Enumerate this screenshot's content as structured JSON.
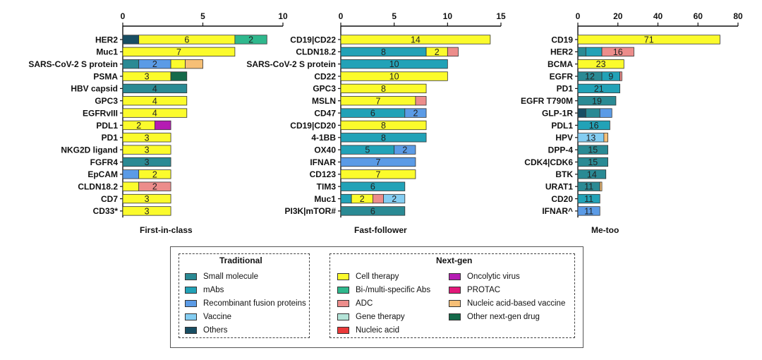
{
  "colors": {
    "small_molecule": "#2a8a94",
    "mabs": "#22a2b7",
    "recombinant": "#5b9be6",
    "vaccine": "#84cdf2",
    "others": "#184e63",
    "cell_therapy": "#fbfb2c",
    "bispecific": "#2fb88d",
    "adc": "#ec8d8b",
    "gene_therapy": "#b4e4d8",
    "nucleic_acid": "#ea3a3a",
    "oncolytic_virus": "#b51cb3",
    "protac": "#e2197a",
    "nucleic_vaccine": "#f6bf76",
    "other_nextgen": "#146a4a"
  },
  "chart_data": [
    {
      "type": "bar",
      "orientation": "horizontal",
      "stacked": true,
      "title": "First-in-class",
      "xlim": [
        0,
        10
      ],
      "xticks": [
        "0",
        "5",
        "10"
      ],
      "categories": [
        "HER2",
        "Muc1",
        "SARS-CoV-2 S protein",
        "PSMA",
        "HBV capsid",
        "GPC3",
        "EGFRvIII",
        "PDL1",
        "PD1",
        "NKG2D ligand",
        "FGFR4",
        "EpCAM",
        "CLDN18.2",
        "CD7",
        "CD33*"
      ],
      "bars": [
        [
          {
            "k": "others",
            "v": 1
          },
          {
            "k": "cell_therapy",
            "v": 6,
            "label": "6"
          },
          {
            "k": "bispecific",
            "v": 2,
            "label": "2"
          }
        ],
        [
          {
            "k": "cell_therapy",
            "v": 7,
            "label": "7"
          }
        ],
        [
          {
            "k": "small_molecule",
            "v": 1
          },
          {
            "k": "recombinant",
            "v": 2,
            "label": "2"
          },
          {
            "k": "cell_therapy",
            "v": 0.9
          },
          {
            "k": "nucleic_vaccine",
            "v": 1.1
          }
        ],
        [
          {
            "k": "cell_therapy",
            "v": 3,
            "label": "3"
          },
          {
            "k": "other_nextgen",
            "v": 1
          }
        ],
        [
          {
            "k": "small_molecule",
            "v": 4,
            "label": "4"
          }
        ],
        [
          {
            "k": "cell_therapy",
            "v": 4,
            "label": "4"
          }
        ],
        [
          {
            "k": "cell_therapy",
            "v": 4,
            "label": "4"
          }
        ],
        [
          {
            "k": "cell_therapy",
            "v": 2,
            "label": "2"
          },
          {
            "k": "oncolytic_virus",
            "v": 1
          }
        ],
        [
          {
            "k": "cell_therapy",
            "v": 3,
            "label": "3"
          }
        ],
        [
          {
            "k": "cell_therapy",
            "v": 3,
            "label": "3"
          }
        ],
        [
          {
            "k": "small_molecule",
            "v": 3,
            "label": "3"
          }
        ],
        [
          {
            "k": "recombinant",
            "v": 1
          },
          {
            "k": "cell_therapy",
            "v": 2,
            "label": "2"
          }
        ],
        [
          {
            "k": "cell_therapy",
            "v": 1
          },
          {
            "k": "adc",
            "v": 2,
            "label": "2"
          }
        ],
        [
          {
            "k": "cell_therapy",
            "v": 3,
            "label": "3"
          }
        ],
        [
          {
            "k": "cell_therapy",
            "v": 3,
            "label": "3"
          }
        ]
      ]
    },
    {
      "type": "bar",
      "orientation": "horizontal",
      "stacked": true,
      "title": "Fast-follower",
      "xlim": [
        0,
        15
      ],
      "xticks": [
        "0",
        "5",
        "10",
        "15"
      ],
      "categories": [
        "CD19|CD22",
        "CLDN18.2",
        "SARS-CoV-2 S protein",
        "CD22",
        "GPC3",
        "MSLN",
        "CD47",
        "CD19|CD20",
        "4-1BB",
        "OX40",
        "IFNAR",
        "CD123",
        "TIM3",
        "Muc1",
        "PI3K|mTOR#"
      ],
      "bars": [
        [
          {
            "k": "cell_therapy",
            "v": 14,
            "label": "14"
          }
        ],
        [
          {
            "k": "mabs",
            "v": 8,
            "label": "8"
          },
          {
            "k": "cell_therapy",
            "v": 2,
            "label": "2"
          },
          {
            "k": "adc",
            "v": 1
          }
        ],
        [
          {
            "k": "mabs",
            "v": 10,
            "label": "10"
          }
        ],
        [
          {
            "k": "cell_therapy",
            "v": 10,
            "label": "10"
          }
        ],
        [
          {
            "k": "cell_therapy",
            "v": 8,
            "label": "8"
          }
        ],
        [
          {
            "k": "cell_therapy",
            "v": 7,
            "label": "7"
          },
          {
            "k": "adc",
            "v": 1
          }
        ],
        [
          {
            "k": "mabs",
            "v": 6,
            "label": "6"
          },
          {
            "k": "recombinant",
            "v": 2,
            "label": "2"
          }
        ],
        [
          {
            "k": "cell_therapy",
            "v": 8,
            "label": "8"
          }
        ],
        [
          {
            "k": "mabs",
            "v": 8,
            "label": "8"
          }
        ],
        [
          {
            "k": "mabs",
            "v": 5,
            "label": "5"
          },
          {
            "k": "recombinant",
            "v": 2,
            "label": "2"
          }
        ],
        [
          {
            "k": "recombinant",
            "v": 7,
            "label": "7"
          }
        ],
        [
          {
            "k": "cell_therapy",
            "v": 7,
            "label": "7"
          }
        ],
        [
          {
            "k": "mabs",
            "v": 6,
            "label": "6"
          }
        ],
        [
          {
            "k": "mabs",
            "v": 1
          },
          {
            "k": "cell_therapy",
            "v": 2,
            "label": "2"
          },
          {
            "k": "adc",
            "v": 1
          },
          {
            "k": "vaccine",
            "v": 2,
            "label": "2"
          }
        ],
        [
          {
            "k": "small_molecule",
            "v": 6,
            "label": "6"
          }
        ]
      ]
    },
    {
      "type": "bar",
      "orientation": "horizontal",
      "stacked": true,
      "title": "Me-too",
      "xlim": [
        0,
        80
      ],
      "xticks": [
        "0",
        "20",
        "40",
        "60",
        "80"
      ],
      "categories": [
        "CD19",
        "HER2",
        "BCMA",
        "EGFR",
        "PD1",
        "EGFR T790M",
        "GLP-1R",
        "PDL1",
        "HPV",
        "DPP-4",
        "CDK4|CDK6",
        "BTK",
        "URAT1",
        "CD20",
        "IFNAR^"
      ],
      "bars": [
        [
          {
            "k": "cell_therapy",
            "v": 71,
            "label": "71"
          }
        ],
        [
          {
            "k": "small_molecule",
            "v": 4
          },
          {
            "k": "mabs",
            "v": 8
          },
          {
            "k": "adc",
            "v": 16,
            "label": "16"
          }
        ],
        [
          {
            "k": "cell_therapy",
            "v": 23,
            "label": "23"
          }
        ],
        [
          {
            "k": "small_molecule",
            "v": 12,
            "label": "12"
          },
          {
            "k": "mabs",
            "v": 9,
            "label": "9"
          },
          {
            "k": "adc",
            "v": 1
          }
        ],
        [
          {
            "k": "mabs",
            "v": 21,
            "label": "21"
          }
        ],
        [
          {
            "k": "small_molecule",
            "v": 19,
            "label": "19"
          }
        ],
        [
          {
            "k": "others",
            "v": 4
          },
          {
            "k": "small_molecule",
            "v": 7
          },
          {
            "k": "recombinant",
            "v": 6
          }
        ],
        [
          {
            "k": "mabs",
            "v": 16,
            "label": "16"
          }
        ],
        [
          {
            "k": "vaccine",
            "v": 13,
            "label": "13"
          },
          {
            "k": "nucleic_vaccine",
            "v": 2
          }
        ],
        [
          {
            "k": "small_molecule",
            "v": 15,
            "label": "15"
          }
        ],
        [
          {
            "k": "small_molecule",
            "v": 15,
            "label": "15"
          }
        ],
        [
          {
            "k": "small_molecule",
            "v": 14,
            "label": "14"
          }
        ],
        [
          {
            "k": "small_molecule",
            "v": 11,
            "label": "11"
          },
          {
            "k": "nucleic_vaccine",
            "v": 1
          }
        ],
        [
          {
            "k": "mabs",
            "v": 11,
            "label": "11"
          }
        ],
        [
          {
            "k": "recombinant",
            "v": 11,
            "label": "11"
          }
        ]
      ]
    }
  ],
  "legend": {
    "traditional": {
      "title": "Traditional",
      "items": [
        {
          "key": "small_molecule",
          "label": "Small molecule"
        },
        {
          "key": "mabs",
          "label": "mAbs"
        },
        {
          "key": "recombinant",
          "label": "Recombinant fusion proteins"
        },
        {
          "key": "vaccine",
          "label": "Vaccine"
        },
        {
          "key": "others",
          "label": "Others"
        }
      ]
    },
    "nextgen": {
      "title": "Next-gen",
      "col1": [
        {
          "key": "cell_therapy",
          "label": "Cell therapy"
        },
        {
          "key": "bispecific",
          "label": "Bi-/multi-specific Abs"
        },
        {
          "key": "adc",
          "label": "ADC"
        },
        {
          "key": "gene_therapy",
          "label": "Gene therapy"
        },
        {
          "key": "nucleic_acid",
          "label": "Nucleic acid"
        }
      ],
      "col2": [
        {
          "key": "oncolytic_virus",
          "label": "Oncolytic virus"
        },
        {
          "key": "protac",
          "label": "PROTAC"
        },
        {
          "key": "nucleic_vaccine",
          "label": "Nucleic acid-based vaccine"
        },
        {
          "key": "other_nextgen",
          "label": "Other next-gen drug"
        }
      ]
    }
  }
}
